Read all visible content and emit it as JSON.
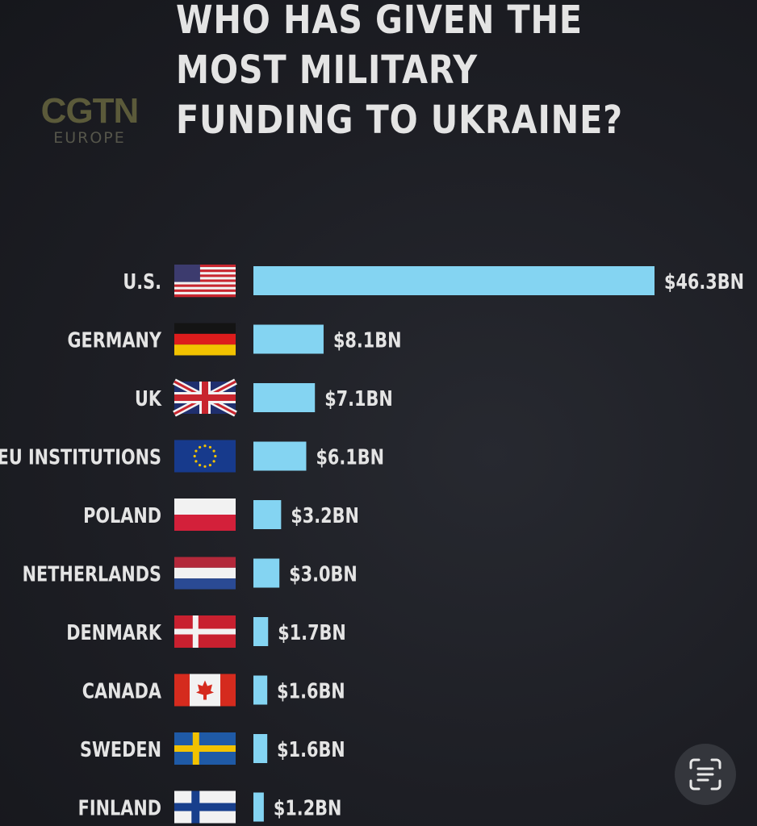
{
  "logo": {
    "main": "CGTN",
    "sub": "EUROPE"
  },
  "colors": {
    "bar": "#84d4f2",
    "text": "#e4e4e4",
    "background": "#1c1d22"
  },
  "chart_data": {
    "type": "bar",
    "orientation": "horizontal",
    "title": "WHO HAS GIVEN THE MOST MILITARY FUNDING TO UKRAINE?",
    "categories": [
      "U.S.",
      "GERMANY",
      "UK",
      "EU INSTITUTIONS",
      "POLAND",
      "NETHERLANDS",
      "DENMARK",
      "CANADA",
      "SWEDEN",
      "FINLAND"
    ],
    "values": [
      46.3,
      8.1,
      7.1,
      6.1,
      3.2,
      3.0,
      1.7,
      1.6,
      1.6,
      1.2
    ],
    "value_labels": [
      "$46.3BN",
      "$8.1BN",
      "$7.1BN",
      "$6.1BN",
      "$3.2BN",
      "$3.0BN",
      "$1.7BN",
      "$1.6BN",
      "$1.6BN",
      "$1.2BN"
    ],
    "flags": [
      "us-flag",
      "germany-flag",
      "uk-flag",
      "eu-flag",
      "poland-flag",
      "netherlands-flag",
      "denmark-flag",
      "canada-flag",
      "sweden-flag",
      "finland-flag"
    ],
    "xlabel": "",
    "ylabel": "",
    "xlim": [
      0,
      46.3
    ],
    "grid": false,
    "legend": "none"
  },
  "ui": {
    "lens_icon": "scan-text-icon"
  }
}
